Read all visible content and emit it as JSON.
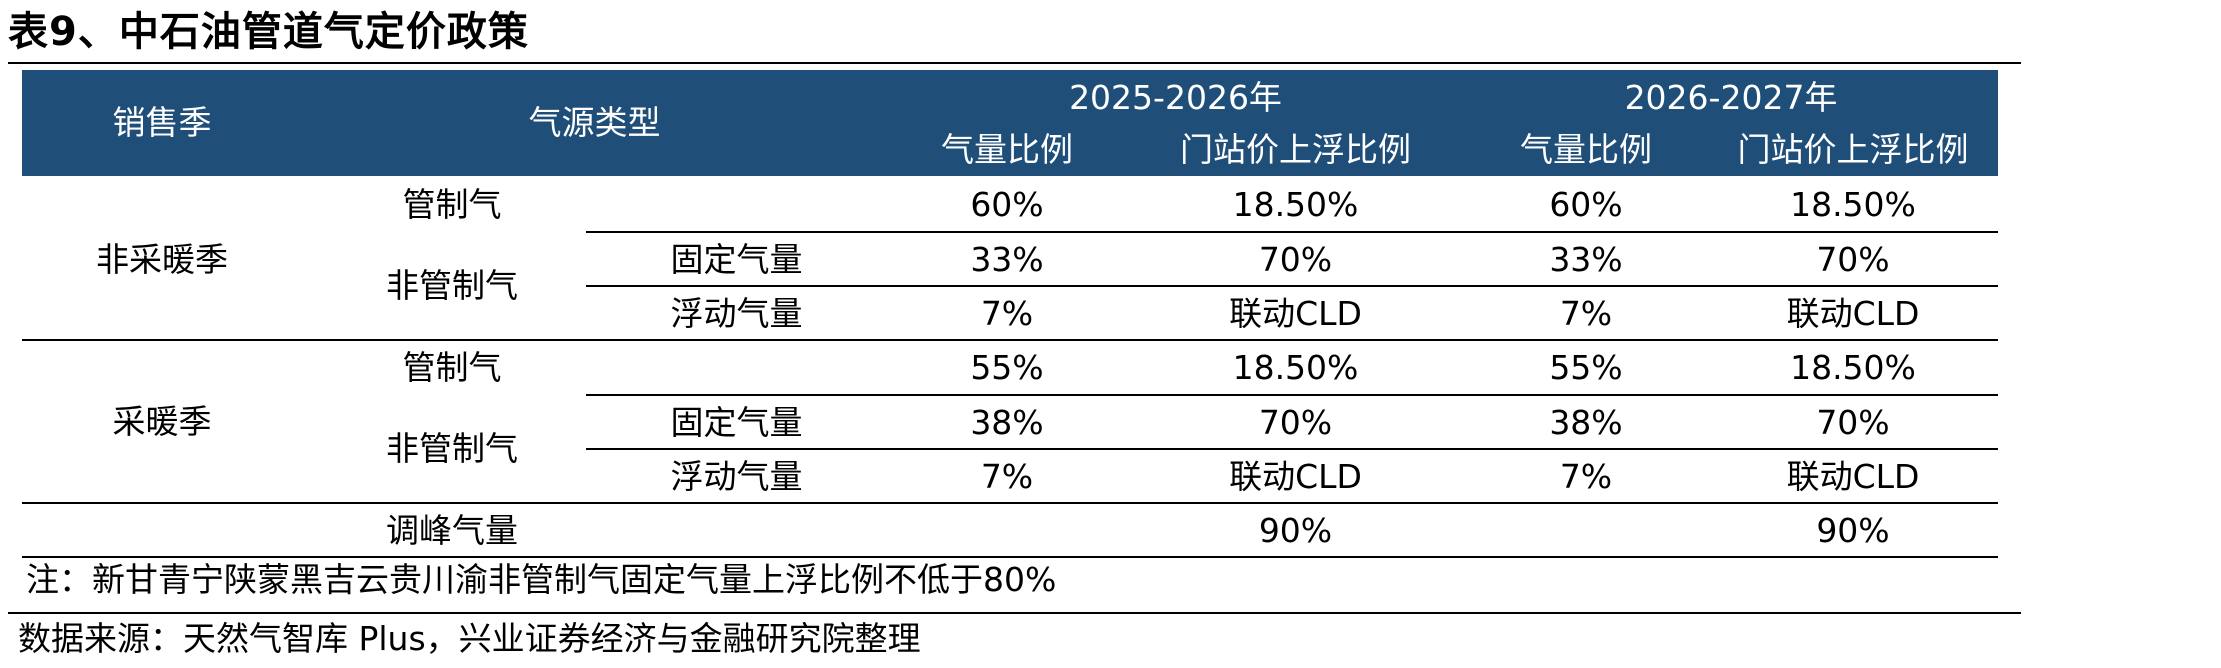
{
  "title": "表9、中石油管道气定价政策",
  "header": {
    "season": "销售季",
    "gas_type": "气源类型",
    "year1": "2025-2026年",
    "year2": "2026-2027年",
    "ratio": "气量比例",
    "uplift": "门站价上浮比例"
  },
  "groups": [
    {
      "season": "非采暖季",
      "regulated_label": "管制气",
      "regulated": [
        "60%",
        "18.50%",
        "60%",
        "18.50%"
      ],
      "nonreg_label": "非管制气",
      "fixed_label": "固定气量",
      "fixed": [
        "33%",
        "70%",
        "33%",
        "70%"
      ],
      "float_label": "浮动气量",
      "float": [
        "7%",
        "联动CLD",
        "7%",
        "联动CLD"
      ]
    },
    {
      "season": "采暖季",
      "regulated_label": "管制气",
      "regulated": [
        "55%",
        "18.50%",
        "55%",
        "18.50%"
      ],
      "nonreg_label": "非管制气",
      "fixed_label": "固定气量",
      "fixed": [
        "38%",
        "70%",
        "38%",
        "70%"
      ],
      "float_label": "浮动气量",
      "float": [
        "7%",
        "联动CLD",
        "7%",
        "联动CLD"
      ]
    }
  ],
  "peak": {
    "label": "调峰气量",
    "uplift1": "90%",
    "uplift2": "90%"
  },
  "note": "注：新甘青宁陕蒙黑吉云贵川渝非管制气固定气量上浮比例不低于80%",
  "source": "数据来源：天然气智库 Plus，兴业证券经济与金融研究院整理",
  "colors": {
    "header_bg": "#1f4e79",
    "header_text": "#ffffff"
  }
}
